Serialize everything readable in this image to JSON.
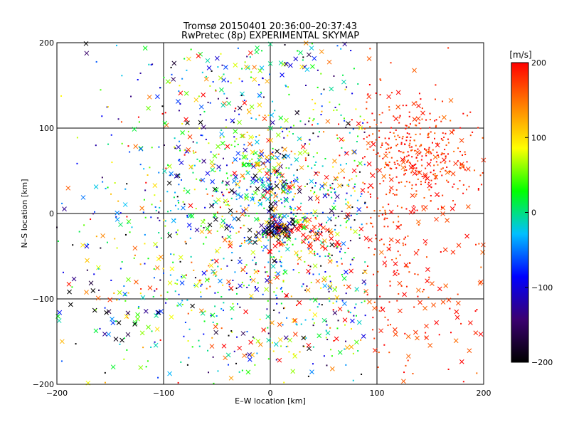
{
  "chart_data": {
    "type": "scatter",
    "title": "Tromsø 20150401 20:36:00–20:37:43",
    "subtitle": "RwPretec (8p) EXPERIMENTAL SKYMAP",
    "xlabel": "E–W location [km]",
    "ylabel": "N–S location [km]",
    "xlim": [
      -200,
      200
    ],
    "ylim": [
      -200,
      200
    ],
    "xticks": [
      -200,
      -100,
      0,
      100,
      200
    ],
    "yticks": [
      -200,
      -100,
      0,
      100,
      200
    ],
    "xtick_labels": [
      "−200",
      "−100",
      "0",
      "100",
      "200"
    ],
    "ytick_labels": [
      "−200",
      "−100",
      "0",
      "100",
      "200"
    ],
    "grid": true,
    "colorbar": {
      "label": "[m/s]",
      "range": [
        -200,
        200
      ],
      "ticks": [
        -200,
        -100,
        0,
        100,
        200
      ],
      "tick_labels": [
        "−200",
        "−100",
        "0",
        "100",
        "200"
      ],
      "colors": [
        "#000000",
        "#3b0070",
        "#0000ff",
        "#00c0ff",
        "#00ff00",
        "#ffff00",
        "#ff8000",
        "#ff0000"
      ]
    },
    "point_groups": [
      {
        "marker": "x",
        "cx": 10,
        "cy": -20,
        "sx": 12,
        "sy": 8,
        "count": 60,
        "v": -190
      },
      {
        "marker": "x",
        "cx": 35,
        "cy": -25,
        "sx": 25,
        "sy": 12,
        "count": 60,
        "v": 195
      },
      {
        "marker": "x",
        "cx": 0,
        "cy": 45,
        "sx": 18,
        "sy": 20,
        "count": 70,
        "v": 40
      },
      {
        "marker": "dot",
        "cx": 140,
        "cy": 70,
        "sx": 28,
        "sy": 25,
        "count": 260,
        "v": 200
      },
      {
        "marker": "x",
        "cx": 120,
        "cy": 60,
        "sx": 40,
        "sy": 40,
        "count": 70,
        "v": 200
      },
      {
        "marker": "x",
        "cx": -50,
        "cy": 110,
        "sx": 40,
        "sy": 40,
        "count": 70,
        "v": 20
      },
      {
        "marker": "x",
        "cx": 10,
        "cy": 180,
        "sx": 40,
        "sy": 15,
        "count": 35,
        "v": 10
      },
      {
        "marker": "dot",
        "cx": 10,
        "cy": -10,
        "sx": 70,
        "sy": 90,
        "count": 900,
        "v": 0
      },
      {
        "marker": "x",
        "cx": 20,
        "cy": -90,
        "sx": 90,
        "sy": 60,
        "count": 160,
        "v": 80
      },
      {
        "marker": "x",
        "cx": -140,
        "cy": -130,
        "sx": 40,
        "sy": 40,
        "count": 40,
        "v": -60
      },
      {
        "marker": "x",
        "cx": 150,
        "cy": -120,
        "sx": 40,
        "sy": 50,
        "count": 45,
        "v": 160
      },
      {
        "marker": "x",
        "cx": -30,
        "cy": 10,
        "sx": 40,
        "sy": 30,
        "count": 60,
        "v": -140
      },
      {
        "marker": "dot",
        "cx": 0,
        "cy": 0,
        "sx": 160,
        "sy": 160,
        "count": 600,
        "v": 0
      },
      {
        "marker": "x",
        "cx": 0,
        "cy": 0,
        "sx": 150,
        "sy": 150,
        "count": 160,
        "v": 0
      }
    ]
  }
}
